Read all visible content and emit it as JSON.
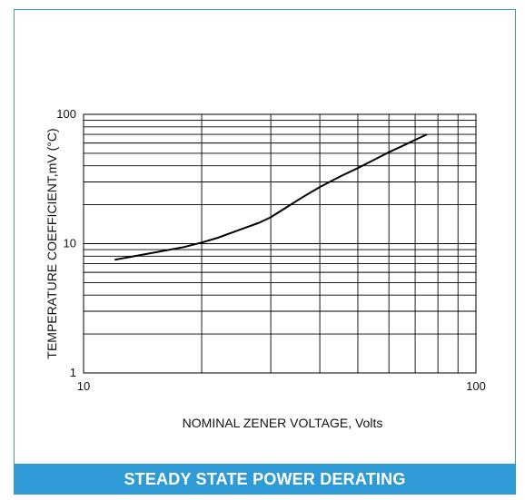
{
  "chart_data": {
    "type": "line",
    "title": "",
    "xlabel": "NOMINAL ZENER VOLTAGE, Volts",
    "ylabel": "TEMPERATURE COEFFICIENT,mV (°C)",
    "xscale": "log",
    "yscale": "log",
    "xlim": [
      10,
      100
    ],
    "ylim": [
      1,
      100
    ],
    "x_tick_labels": [
      "10",
      "100"
    ],
    "y_tick_labels": [
      "1",
      "10",
      "100"
    ],
    "grid": true,
    "series": [
      {
        "x": [
          12,
          15,
          18,
          20,
          22,
          25,
          28,
          30,
          33,
          36,
          40,
          45,
          50,
          55,
          60,
          65,
          70,
          75
        ],
        "y": [
          7.5,
          8.5,
          9.4,
          10.2,
          11.1,
          12.8,
          14.5,
          16,
          19.2,
          22.7,
          27.4,
          33,
          38.4,
          44.5,
          51,
          57,
          63.5,
          70
        ]
      }
    ],
    "line_color": "#000000"
  },
  "footer": {
    "caption": "STEADY STATE POWER DERATING",
    "bg_color": "#2e9bd6"
  }
}
